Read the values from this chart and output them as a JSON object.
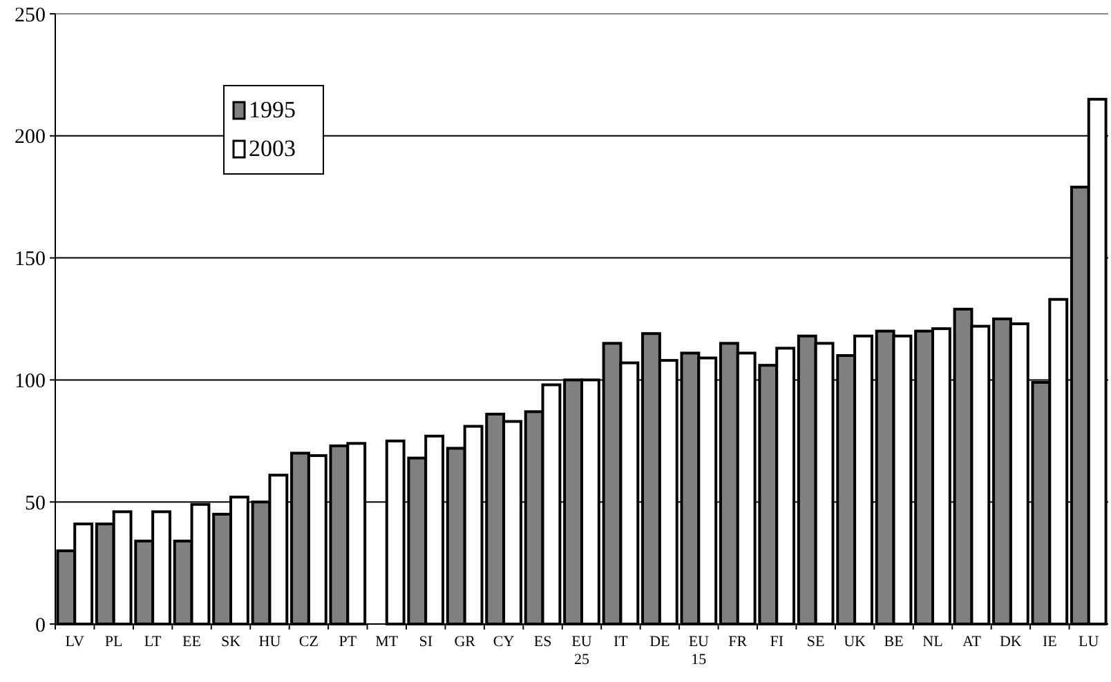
{
  "chart_data": {
    "type": "bar",
    "categories": [
      "LV",
      "PL",
      "LT",
      "EE",
      "SK",
      "HU",
      "CZ",
      "PT",
      "MT",
      "SI",
      "GR",
      "CY",
      "ES",
      "EU 25",
      "IT",
      "DE",
      "EU 15",
      "FR",
      "FI",
      "SE",
      "UK",
      "BE",
      "NL",
      "AT",
      "DK",
      "IE",
      "LU"
    ],
    "series": [
      {
        "name": "1995",
        "color": "#808080",
        "values": [
          30,
          41,
          34,
          34,
          45,
          50,
          70,
          73,
          null,
          68,
          72,
          86,
          87,
          100,
          115,
          119,
          111,
          115,
          106,
          118,
          110,
          120,
          120,
          129,
          125,
          99,
          179
        ]
      },
      {
        "name": "2003",
        "color": "#ffffff",
        "values": [
          41,
          46,
          46,
          49,
          52,
          61,
          69,
          74,
          75,
          77,
          81,
          83,
          98,
          100,
          107,
          108,
          109,
          111,
          113,
          115,
          118,
          118,
          121,
          122,
          123,
          133,
          215
        ]
      }
    ],
    "ylim": [
      0,
      250
    ],
    "yticks": [
      0,
      50,
      100,
      150,
      200,
      250
    ],
    "grid": "y",
    "legend": "top left"
  }
}
